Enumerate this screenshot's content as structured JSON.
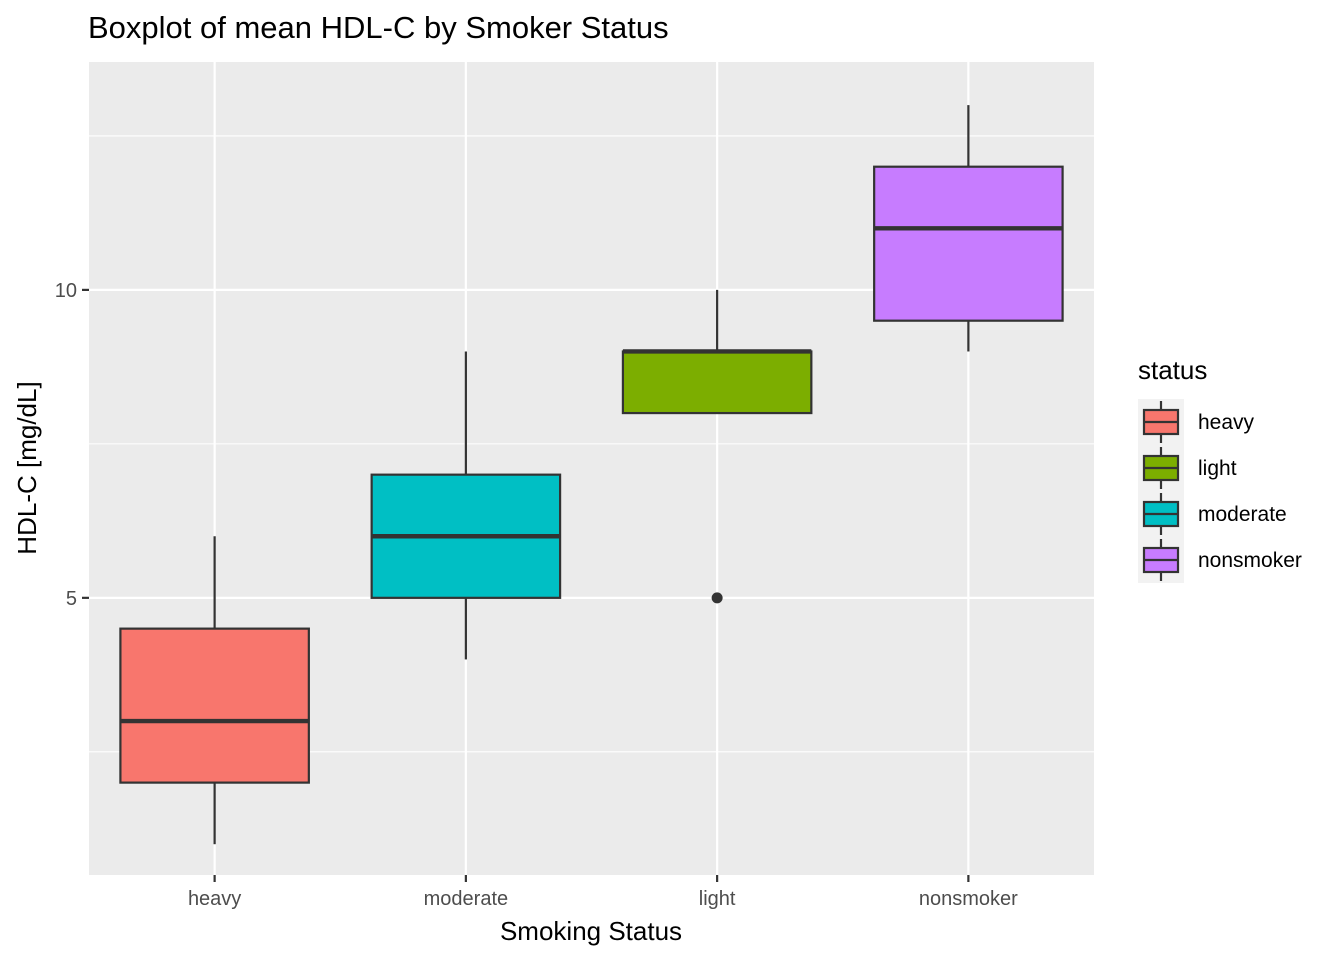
{
  "chart_data": {
    "type": "boxplot",
    "title": "Boxplot of mean HDL-C by Smoker Status",
    "xlabel": "Smoking Status",
    "ylabel": "HDL-C [mg/dL]",
    "ylim": [
      0.5,
      13.7
    ],
    "yticks": [
      5,
      10
    ],
    "grid": true,
    "legend_position": "right",
    "legend_title": "status",
    "categories": [
      "heavy",
      "moderate",
      "light",
      "nonsmoker"
    ],
    "boxes": [
      {
        "category": "heavy",
        "min": 1,
        "q1": 2,
        "median": 3,
        "q3": 4.5,
        "max": 6,
        "outliers": [],
        "color": "#F8766D"
      },
      {
        "category": "moderate",
        "min": 4,
        "q1": 5,
        "median": 6,
        "q3": 7,
        "max": 9,
        "outliers": [],
        "color": "#00BFC4"
      },
      {
        "category": "light",
        "min": 8,
        "q1": 8,
        "median": 9,
        "q3": 9,
        "max": 10,
        "outliers": [
          5
        ],
        "color": "#7CAE00"
      },
      {
        "category": "nonsmoker",
        "min": 9,
        "q1": 9.5,
        "median": 11,
        "q3": 12,
        "max": 13,
        "outliers": [],
        "color": "#C77CFF"
      }
    ],
    "legend": [
      {
        "label": "heavy",
        "color": "#F8766D"
      },
      {
        "label": "light",
        "color": "#7CAE00"
      },
      {
        "label": "moderate",
        "color": "#00BFC4"
      },
      {
        "label": "nonsmoker",
        "color": "#C77CFF"
      }
    ],
    "colors": {
      "panel_background": "#ebebeb",
      "gridline": "#ffffff",
      "box_outline": "#333333",
      "tick_text": "#4d4d4d"
    }
  }
}
